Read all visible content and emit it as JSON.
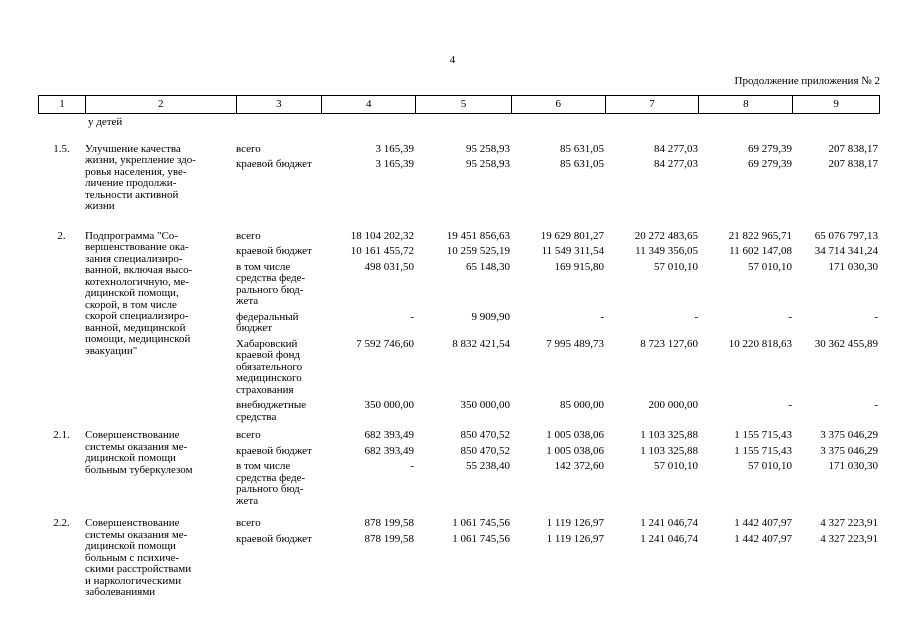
{
  "page": {
    "number": "4",
    "continuation": "Продолжение приложения № 2"
  },
  "table": {
    "headers": [
      "1",
      "2",
      "3",
      "4",
      "5",
      "6",
      "7",
      "8",
      "9"
    ],
    "carryover": "у детей",
    "sections": [
      {
        "num": "1.5.",
        "name": "Улучшение качества\nжизни, укрепление здо-\nровья населения, уве-\nличение продолжи-\nтельности активной\nжизни",
        "lines": [
          {
            "label": "всего",
            "values": [
              "3 165,39",
              "95 258,93",
              "85 631,05",
              "84 277,03",
              "69 279,39",
              "207 838,17"
            ]
          },
          {
            "label": "краевой бюджет",
            "values": [
              "3 165,39",
              "95 258,93",
              "85 631,05",
              "84 277,03",
              "69 279,39",
              "207 838,17"
            ]
          }
        ]
      },
      {
        "num": "2.",
        "name": "Подпрограмма \"Со-\nвершенствование ока-\nзания специализиро-\nванной, включая высо-\nкотехнологичную, ме-\nдицинской помощи,\nскорой, в том числе\nскорой специализиро-\nванной, медицинской\nпомощи, медицинской\nэвакуации\"",
        "lines": [
          {
            "label": "всего",
            "values": [
              "18 104 202,32",
              "19 451 856,63",
              "19 629 801,27",
              "20 272 483,65",
              "21 822 965,71",
              "65 076 797,13"
            ]
          },
          {
            "label": "краевой бюджет",
            "values": [
              "10 161 455,72",
              "10 259 525,19",
              "11 549 311,54",
              "11 349 356,05",
              "11 602 147,08",
              "34 714 341,24"
            ]
          },
          {
            "label": "в том числе\nсредства феде-\nрального бюд-\nжета",
            "values": [
              "498 031,50",
              "65 148,30",
              "169 915,80",
              "57 010,10",
              "57 010,10",
              "171 030,30"
            ]
          },
          {
            "label": "федеральный\nбюджет",
            "values": [
              "-",
              "9 909,90",
              "-",
              "-",
              "-",
              "-"
            ]
          },
          {
            "label": "Хабаровский\nкраевой фонд\nобязательного\nмедицинского\nстрахования",
            "values": [
              "7 592 746,60",
              "8 832 421,54",
              "7 995 489,73",
              "8 723 127,60",
              "10 220 818,63",
              "30 362 455,89"
            ]
          },
          {
            "label": "внебюджетные\nсредства",
            "values": [
              "350 000,00",
              "350 000,00",
              "85 000,00",
              "200 000,00",
              "-",
              "-"
            ]
          }
        ]
      },
      {
        "num": "2.1.",
        "name": "Совершенствование\nсистемы оказания ме-\nдицинской помощи\nбольным туберкулезом",
        "lines": [
          {
            "label": "всего",
            "values": [
              "682 393,49",
              "850 470,52",
              "1 005 038,06",
              "1 103 325,88",
              "1 155 715,43",
              "3 375 046,29"
            ]
          },
          {
            "label": "краевой бюджет",
            "values": [
              "682 393,49",
              "850 470,52",
              "1 005 038,06",
              "1 103 325,88",
              "1 155 715,43",
              "3 375 046,29"
            ]
          },
          {
            "label": "в том числе\nсредства феде-\nрального бюд-\nжета",
            "values": [
              "-",
              "55 238,40",
              "142 372,60",
              "57 010,10",
              "57 010,10",
              "171 030,30"
            ]
          }
        ]
      },
      {
        "num": "2.2.",
        "name": "Совершенствование\nсистемы оказания ме-\nдицинской помощи\nбольным с психиче-\nскими расстройствами\nи наркологическими\nзаболеваниями",
        "lines": [
          {
            "label": "всего",
            "values": [
              "878 199,58",
              "1 061 745,56",
              "1 119 126,97",
              "1 241 046,74",
              "1 442 407,97",
              "4 327 223,91"
            ]
          },
          {
            "label": "краевой бюджет",
            "values": [
              "878 199,58",
              "1 061 745,56",
              "1 119 126,97",
              "1 241 046,74",
              "1 442 407,97",
              "4 327 223,91"
            ]
          }
        ]
      }
    ]
  }
}
